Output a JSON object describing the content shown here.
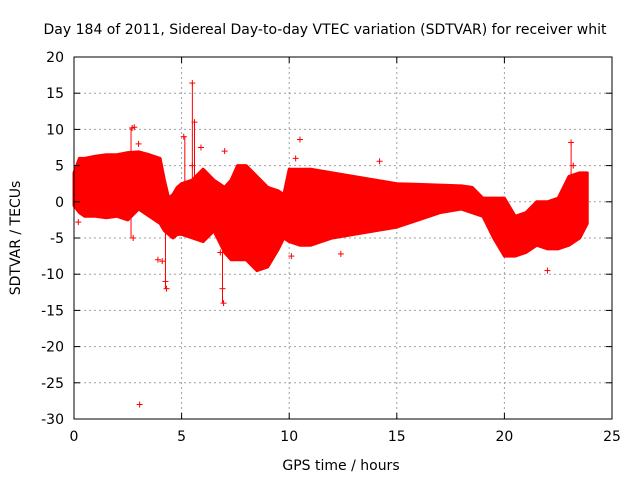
{
  "chart_data": {
    "type": "scatter",
    "title": "Day 184 of 2011, Sidereal Day-to-day VTEC variation (SDTVAR) for receiver whit",
    "xlabel": "GPS time / hours",
    "ylabel": "SDTVAR / TECUs",
    "xlim": [
      0,
      25
    ],
    "ylim": [
      -30,
      20
    ],
    "xticks": [
      0,
      5,
      10,
      15,
      20,
      25
    ],
    "yticks": [
      -30,
      -25,
      -20,
      -15,
      -10,
      -5,
      0,
      5,
      10,
      15,
      20
    ],
    "grid": true,
    "marker": "+",
    "color": "#ff0000",
    "series": [
      {
        "name": "SDTVAR",
        "band": {
          "x": [
            0.0,
            0.25,
            0.5,
            1.0,
            1.5,
            2.0,
            2.5,
            3.0,
            3.5,
            4.0,
            4.2,
            4.4,
            4.6,
            4.8,
            5.0,
            5.5,
            6.0,
            6.5,
            7.0,
            7.3,
            7.6,
            8.0,
            8.5,
            9.0,
            9.5,
            9.75,
            10.0,
            10.5,
            11.0,
            12.0,
            13.0,
            14.0,
            15.0,
            16.0,
            17.0,
            18.0,
            18.5,
            19.0,
            19.5,
            20.0,
            20.5,
            21.0,
            21.5,
            22.0,
            22.5,
            23.0,
            23.5,
            23.85
          ],
          "upper": [
            4.0,
            6.0,
            6.0,
            6.3,
            6.5,
            6.5,
            6.8,
            6.9,
            6.5,
            6.0,
            3.0,
            0.5,
            1.0,
            2.0,
            2.5,
            3.0,
            4.5,
            3.0,
            2.0,
            3.0,
            5.0,
            5.0,
            3.5,
            2.0,
            1.5,
            1.0,
            4.5,
            4.5,
            4.5,
            4.0,
            3.5,
            3.0,
            2.5,
            2.4,
            2.3,
            2.2,
            2.0,
            0.5,
            0.5,
            0.5,
            -2.0,
            -1.5,
            0.0,
            0.0,
            0.5,
            3.5,
            4.0,
            4.0
          ],
          "lower": [
            -0.5,
            -1.5,
            -2.0,
            -2.0,
            -2.2,
            -2.0,
            -2.5,
            -1.0,
            -2.0,
            -3.0,
            -4.0,
            -4.5,
            -5.0,
            -4.5,
            -4.5,
            -5.0,
            -5.5,
            -4.0,
            -7.0,
            -8.0,
            -8.0,
            -8.0,
            -9.5,
            -9.0,
            -6.5,
            -5.0,
            -5.5,
            -6.0,
            -6.0,
            -5.0,
            -4.5,
            -4.0,
            -3.5,
            -2.5,
            -1.5,
            -1.0,
            -1.5,
            -2.0,
            -5.0,
            -7.5,
            -7.5,
            -7.0,
            -6.0,
            -6.5,
            -6.5,
            -6.0,
            -5.0,
            -3.0
          ]
        },
        "outliers": [
          {
            "x": 0.2,
            "y": -2.8
          },
          {
            "x": 2.7,
            "y": 10.2
          },
          {
            "x": 2.8,
            "y": 10.3
          },
          {
            "x": 3.0,
            "y": 8.0
          },
          {
            "x": 2.75,
            "y": -5.0
          },
          {
            "x": 3.05,
            "y": -28.0
          },
          {
            "x": 3.9,
            "y": -8.0
          },
          {
            "x": 4.1,
            "y": -8.2
          },
          {
            "x": 4.25,
            "y": -11.0
          },
          {
            "x": 4.3,
            "y": -12.0
          },
          {
            "x": 5.1,
            "y": 9.0
          },
          {
            "x": 5.5,
            "y": 16.4
          },
          {
            "x": 5.5,
            "y": 5.0
          },
          {
            "x": 5.6,
            "y": 11.0
          },
          {
            "x": 5.9,
            "y": 7.5
          },
          {
            "x": 6.8,
            "y": -7.0
          },
          {
            "x": 6.9,
            "y": -12.0
          },
          {
            "x": 6.95,
            "y": -14.0
          },
          {
            "x": 7.0,
            "y": 7.0
          },
          {
            "x": 10.1,
            "y": -7.5
          },
          {
            "x": 10.5,
            "y": 8.6
          },
          {
            "x": 10.3,
            "y": 6.0
          },
          {
            "x": 12.4,
            "y": -7.2
          },
          {
            "x": 14.2,
            "y": 5.6
          },
          {
            "x": 22.0,
            "y": -9.5
          },
          {
            "x": 23.1,
            "y": 8.2
          },
          {
            "x": 23.2,
            "y": 5.0
          }
        ],
        "spikes": [
          {
            "x": 2.65,
            "from": -5.0,
            "to": 10.2
          },
          {
            "x": 4.25,
            "from": -12.0,
            "to": -3.0
          },
          {
            "x": 5.15,
            "from": 9.0,
            "to": 0.0
          },
          {
            "x": 5.5,
            "from": 16.4,
            "to": -3.0
          },
          {
            "x": 5.6,
            "from": 11.0,
            "to": 2.0
          },
          {
            "x": 6.9,
            "from": -14.0,
            "to": -6.0
          },
          {
            "x": 23.1,
            "from": 8.2,
            "to": 3.0
          }
        ]
      }
    ]
  }
}
